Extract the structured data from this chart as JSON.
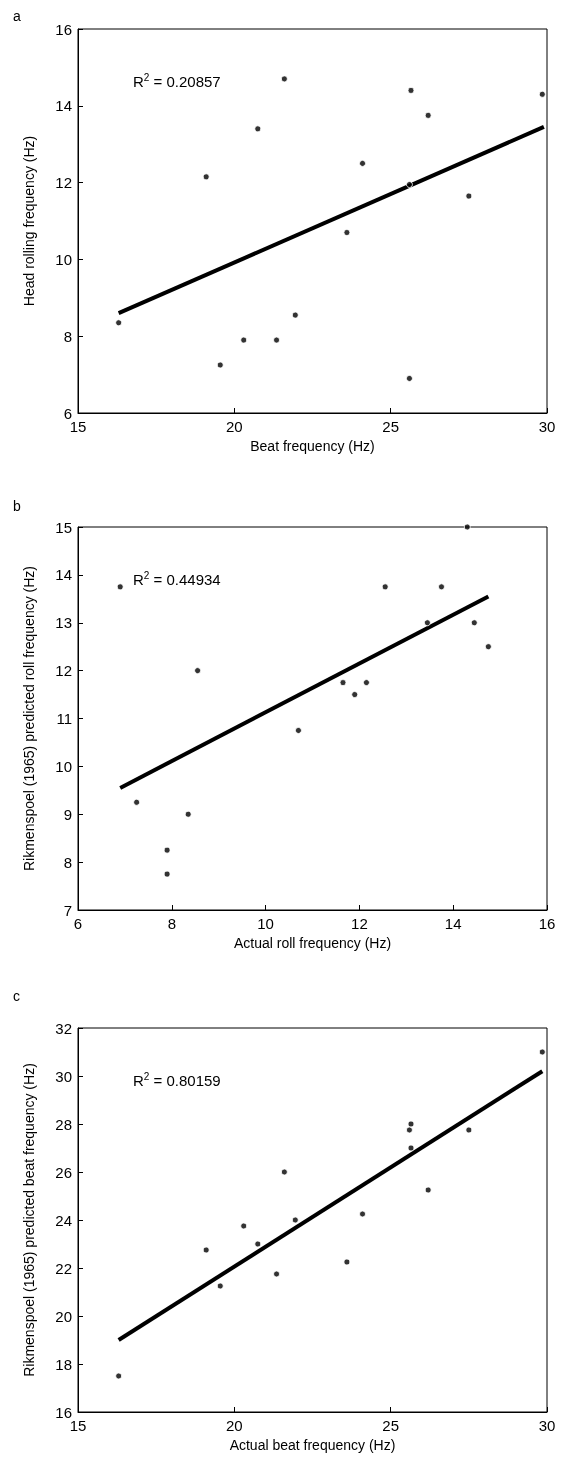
{
  "chart_data": [
    {
      "type": "scatter",
      "title": "a",
      "xlabel": "Beat frequency (Hz)",
      "ylabel": "Head rolling frequency (Hz)",
      "annotations": [
        "R$^{2}$ = 0.20857"
      ],
      "grid": false,
      "marker": "circle",
      "xlim": [
        15,
        30
      ],
      "xticks": [
        15,
        20,
        25,
        30
      ],
      "ylim": [
        6,
        16
      ],
      "yticks": [
        6,
        8,
        10,
        12,
        14,
        16
      ],
      "series": [
        {
          "color": "#000000",
          "x": [
            16.3,
            19.1,
            19.55,
            20.3,
            20.75,
            21.35,
            21.6,
            21.95,
            23.6,
            24.1,
            25.6,
            25.65,
            25.6,
            26.2,
            27.5,
            29.85
          ],
          "values": [
            8.35,
            12.15,
            7.25,
            7.9,
            13.4,
            7.9,
            14.7,
            8.55,
            10.7,
            12.5,
            6.9,
            14.4,
            11.95,
            13.75,
            11.65,
            14.3
          ]
        },
        {
          "type": "line",
          "color": "#000000",
          "marker": "none",
          "line_style": "solid",
          "x": [
            16.3,
            29.9
          ],
          "values": [
            8.6,
            13.45
          ]
        }
      ]
    },
    {
      "type": "scatter",
      "title": "b",
      "xlabel": "Actual roll frequency (Hz)",
      "ylabel": "Rikmenspoel (1965) predicted roll frequency (Hz)",
      "annotations": [
        "R$^{2}$ = 0.44934"
      ],
      "grid": false,
      "marker": "circle",
      "xlim": [
        6,
        16
      ],
      "xticks": [
        6,
        8,
        10,
        12,
        14,
        16
      ],
      "ylim": [
        7,
        15
      ],
      "yticks": [
        7,
        8,
        9,
        10,
        11,
        12,
        13,
        14,
        15
      ],
      "series": [
        {
          "color": "#000000",
          "x": [
            6.9,
            7.25,
            7.9,
            7.9,
            8.35,
            8.55,
            10.7,
            11.65,
            11.9,
            12.15,
            12.55,
            13.45,
            13.75,
            14.3,
            14.45,
            14.75
          ],
          "values": [
            13.75,
            9.25,
            8.25,
            7.75,
            9.0,
            12.0,
            10.75,
            11.75,
            11.5,
            11.75,
            13.75,
            13.0,
            13.75,
            15.0,
            13.0,
            12.5
          ]
        },
        {
          "type": "line",
          "color": "#000000",
          "marker": "none",
          "line_style": "solid",
          "x": [
            6.9,
            14.75
          ],
          "values": [
            9.55,
            13.55
          ]
        }
      ]
    },
    {
      "type": "scatter",
      "title": "c",
      "xlabel": "Actual beat frequency (Hz)",
      "ylabel": "Rikmenspoel (1965) predicted beat frequency (Hz)",
      "annotations": [
        "R$^{2}$ = 0.80159"
      ],
      "grid": false,
      "marker": "circle",
      "xlim": [
        15,
        30
      ],
      "xticks": [
        15,
        20,
        25,
        30
      ],
      "ylim": [
        16,
        32
      ],
      "yticks": [
        16,
        18,
        20,
        22,
        24,
        26,
        28,
        30,
        32
      ],
      "series": [
        {
          "color": "#000000",
          "x": [
            16.3,
            19.1,
            19.55,
            20.3,
            20.75,
            21.35,
            21.6,
            21.95,
            23.6,
            24.1,
            25.6,
            25.65,
            25.65,
            26.2,
            27.5,
            29.85
          ],
          "values": [
            17.5,
            22.75,
            21.25,
            23.75,
            23.0,
            21.75,
            26.0,
            24.0,
            22.25,
            24.25,
            27.75,
            28.0,
            27.0,
            25.25,
            27.75,
            31.0
          ]
        },
        {
          "type": "line",
          "color": "#000000",
          "marker": "none",
          "line_style": "solid",
          "x": [
            16.3,
            29.85
          ],
          "values": [
            19.0,
            30.2
          ]
        }
      ]
    }
  ]
}
